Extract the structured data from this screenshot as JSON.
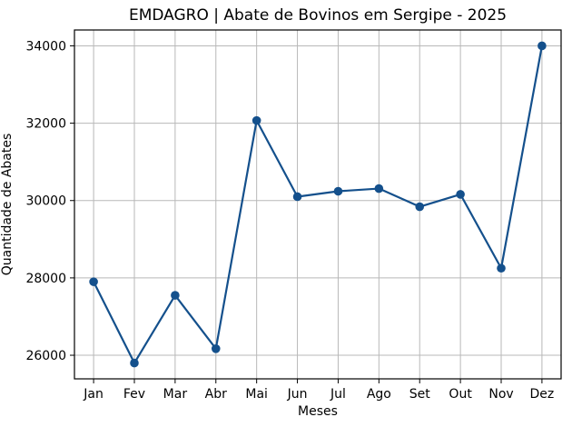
{
  "chart_data": {
    "type": "line",
    "title": "EMDAGRO | Abate de Bovinos em Sergipe - 2025",
    "xlabel": "Meses",
    "ylabel": "Quantidade de Abates",
    "categories": [
      "Jan",
      "Fev",
      "Mar",
      "Abr",
      "Mai",
      "Jun",
      "Jul",
      "Ago",
      "Set",
      "Out",
      "Nov",
      "Dez"
    ],
    "values": [
      27900,
      25800,
      27550,
      26170,
      32070,
      30100,
      30240,
      30310,
      29840,
      30160,
      28250,
      34000
    ],
    "yticks": [
      26000,
      28000,
      30000,
      32000,
      34000
    ],
    "ylim": [
      25390,
      34410
    ],
    "grid": true,
    "legend": "none",
    "line_color": "#14508c",
    "marker": "circle",
    "grid_color": "#b8b8b8",
    "axis_color": "#000000",
    "background_color": "#ffffff"
  }
}
